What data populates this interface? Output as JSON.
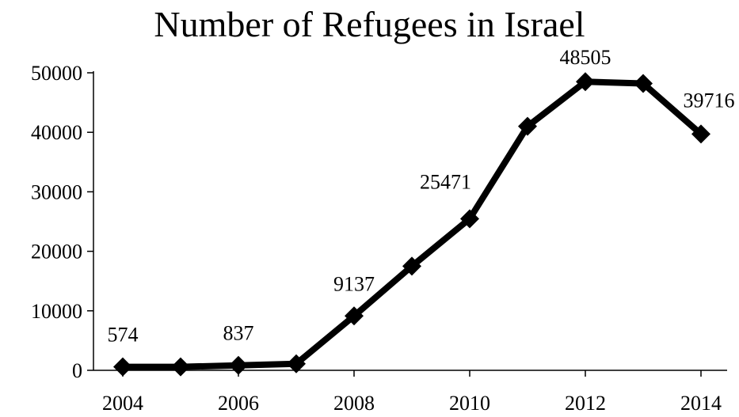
{
  "chart_data": {
    "type": "line",
    "title": "Number of Refugees in Israel",
    "xlabel": "",
    "ylabel": "",
    "x": [
      2004,
      2005,
      2006,
      2007,
      2008,
      2009,
      2010,
      2011,
      2012,
      2013,
      2014
    ],
    "series": [
      {
        "values": [
          574,
          580,
          837,
          1100,
          9137,
          17500,
          25471,
          41000,
          48505,
          48200,
          39716
        ]
      }
    ],
    "data_labels": [
      {
        "x": 2004,
        "text": "574"
      },
      {
        "x": 2006,
        "text": "837"
      },
      {
        "x": 2008,
        "text": "9137"
      },
      {
        "x": 2010,
        "text": "25471"
      },
      {
        "x": 2012,
        "text": "48505"
      },
      {
        "x": 2014,
        "text": "39716"
      }
    ],
    "x_ticks": [
      2004,
      2006,
      2008,
      2010,
      2012,
      2014
    ],
    "y_ticks": [
      0,
      10000,
      20000,
      30000,
      40000,
      50000
    ],
    "ylim": [
      0,
      50000
    ],
    "grid": false,
    "legend": "none",
    "marker": "diamond",
    "line_color": "#000000"
  }
}
